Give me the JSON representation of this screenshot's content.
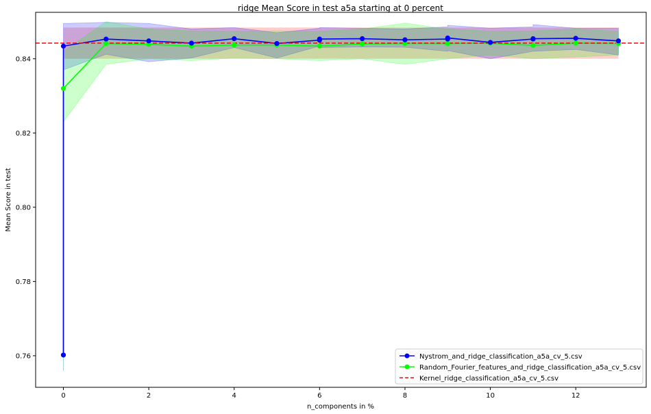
{
  "chart_data": {
    "type": "line",
    "title": "ridge Mean Score in test a5a starting at 0 percent",
    "xlabel": "n_components in %",
    "ylabel": "Mean Score in test",
    "xlim": [
      -0.65,
      13.65
    ],
    "ylim": [
      0.7515,
      0.8525
    ],
    "xticks": [
      0,
      2,
      4,
      6,
      8,
      10,
      12
    ],
    "yticks": [
      0.76,
      0.78,
      0.8,
      0.82,
      0.84
    ],
    "ytick_labels": [
      "0.76",
      "0.78",
      "0.80",
      "0.82",
      "0.84"
    ],
    "legend_position": "bottom-right",
    "grid": false,
    "series": [
      {
        "name": "Nystrom_and_ridge_classification_a5a_cv_5.csv",
        "color": "#0000ff",
        "band_color": "#0000ff",
        "x": [
          0,
          0,
          1,
          2,
          3,
          4,
          5,
          6,
          6,
          7,
          8,
          9,
          9,
          10,
          11,
          11,
          12,
          13
        ],
        "y": [
          0.7602,
          0.8434,
          0.8453,
          0.8448,
          0.8442,
          0.8454,
          0.8441,
          0.845,
          0.8453,
          0.8454,
          0.8451,
          0.8453,
          0.8456,
          0.8444,
          0.8453,
          0.8454,
          0.8455,
          0.8448
        ],
        "lower": [
          0.756,
          0.837,
          0.8412,
          0.8392,
          0.8402,
          0.843,
          0.8402,
          0.8434,
          0.843,
          0.8432,
          0.8431,
          0.842,
          0.8422,
          0.84,
          0.842,
          0.842,
          0.8425,
          0.841
        ],
        "upper": [
          0.764,
          0.8495,
          0.8498,
          0.8495,
          0.848,
          0.8484,
          0.847,
          0.8482,
          0.8484,
          0.8482,
          0.848,
          0.8486,
          0.849,
          0.8482,
          0.8486,
          0.8492,
          0.8482,
          0.8482
        ]
      },
      {
        "name": "Random_Fourier_features_and_ridge_classification_a5a_cv_5.csv",
        "color": "#00ff00",
        "band_color": "#00ff00",
        "x": [
          0,
          0,
          1,
          2,
          3,
          4,
          5,
          6,
          7,
          8,
          9,
          10,
          11,
          12,
          13
        ],
        "y": [
          0.7602,
          0.832,
          0.8441,
          0.8439,
          0.8434,
          0.8437,
          0.8437,
          0.8434,
          0.844,
          0.8441,
          0.8441,
          0.8442,
          0.8436,
          0.8442,
          0.8441
        ],
        "lower": [
          0.756,
          0.823,
          0.8385,
          0.84,
          0.8395,
          0.8402,
          0.84,
          0.8395,
          0.84,
          0.8385,
          0.84,
          0.841,
          0.84,
          0.8405,
          0.841
        ],
        "upper": [
          0.764,
          0.842,
          0.85,
          0.848,
          0.8475,
          0.8474,
          0.8475,
          0.8474,
          0.848,
          0.8496,
          0.848,
          0.8474,
          0.8475,
          0.848,
          0.8474
        ]
      },
      {
        "name": "Kernel_ridge_classification_a5a_cv_5.csv",
        "color": "#ff0000",
        "band_color": "#ff0000",
        "style": "dashed",
        "y": 0.8442,
        "lower": 0.84,
        "upper": 0.8484
      }
    ]
  }
}
